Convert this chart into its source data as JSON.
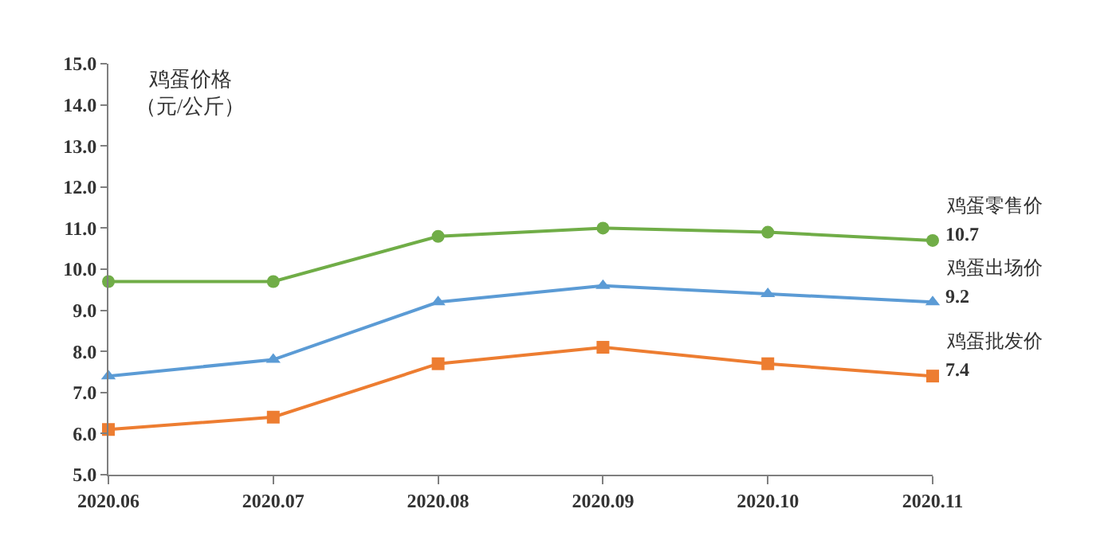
{
  "chart_data": {
    "type": "line",
    "ylabel": "鸡蛋价格（元/公斤）",
    "categories": [
      "2020.06",
      "2020.07",
      "2020.08",
      "2020.09",
      "2020.10",
      "2020.11"
    ],
    "series": [
      {
        "name": "鸡蛋零售价",
        "color": "#70ad47",
        "marker": "circle",
        "values": [
          9.7,
          9.7,
          10.8,
          11.0,
          10.9,
          10.7
        ],
        "value_labels": [
          null,
          null,
          null,
          null,
          null,
          "10.7"
        ]
      },
      {
        "name": "鸡蛋出场价",
        "color": "#5b9bd5",
        "marker": "triangle",
        "values": [
          7.4,
          7.8,
          9.2,
          9.6,
          9.4,
          9.2
        ],
        "value_labels": [
          null,
          null,
          null,
          null,
          null,
          "9.2"
        ]
      },
      {
        "name": "鸡蛋批发价",
        "color": "#ed7d31",
        "marker": "square",
        "values": [
          6.1,
          6.4,
          7.7,
          8.1,
          7.7,
          7.4
        ],
        "value_labels": [
          null,
          null,
          null,
          null,
          null,
          "7.4"
        ]
      }
    ],
    "ylim": [
      5.0,
      15.0
    ],
    "yticks": [
      {
        "value": 5,
        "label": "5.0"
      },
      {
        "value": 6,
        "label": "6.0"
      },
      {
        "value": 7,
        "label": "7.0"
      },
      {
        "value": 8,
        "label": "8.0"
      },
      {
        "value": 9,
        "label": "9.0"
      },
      {
        "value": 10,
        "label": "10.0"
      },
      {
        "value": 11,
        "label": "11.0"
      },
      {
        "value": 12,
        "label": "12.0"
      },
      {
        "value": 13,
        "label": "13.0"
      },
      {
        "value": 14,
        "label": "14.0"
      },
      {
        "value": 15,
        "label": "15.0"
      }
    ],
    "legend": false,
    "line_style": "solid"
  }
}
